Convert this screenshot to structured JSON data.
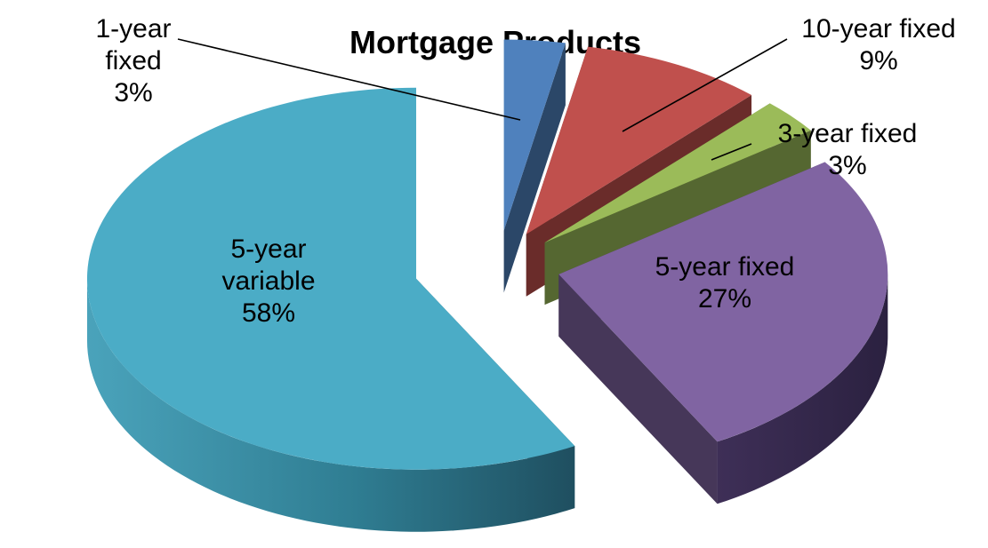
{
  "chart_data": {
    "type": "pie",
    "title": "Mortgage Products",
    "style": "exploded 3D pie",
    "categories": [
      "1-year fixed",
      "10-year fixed",
      "3-year fixed",
      "5-year fixed",
      "5-year variable"
    ],
    "values": [
      3,
      9,
      3,
      27,
      58
    ],
    "value_labels": [
      "3%",
      "9%",
      "3%",
      "27%",
      "58%"
    ],
    "unit": "%",
    "colors": [
      "#4F81BD",
      "#C0504D",
      "#9BBB59",
      "#8064A2",
      "#4BACC6"
    ],
    "legend": "none",
    "label_lines": [
      [
        "1-year",
        "fixed",
        "3%"
      ],
      [
        "10-year fixed",
        "9%"
      ],
      [
        "3-year fixed",
        "3%"
      ],
      [
        "5-year fixed",
        "27%"
      ],
      [
        "5-year",
        "variable",
        "58%"
      ]
    ]
  }
}
